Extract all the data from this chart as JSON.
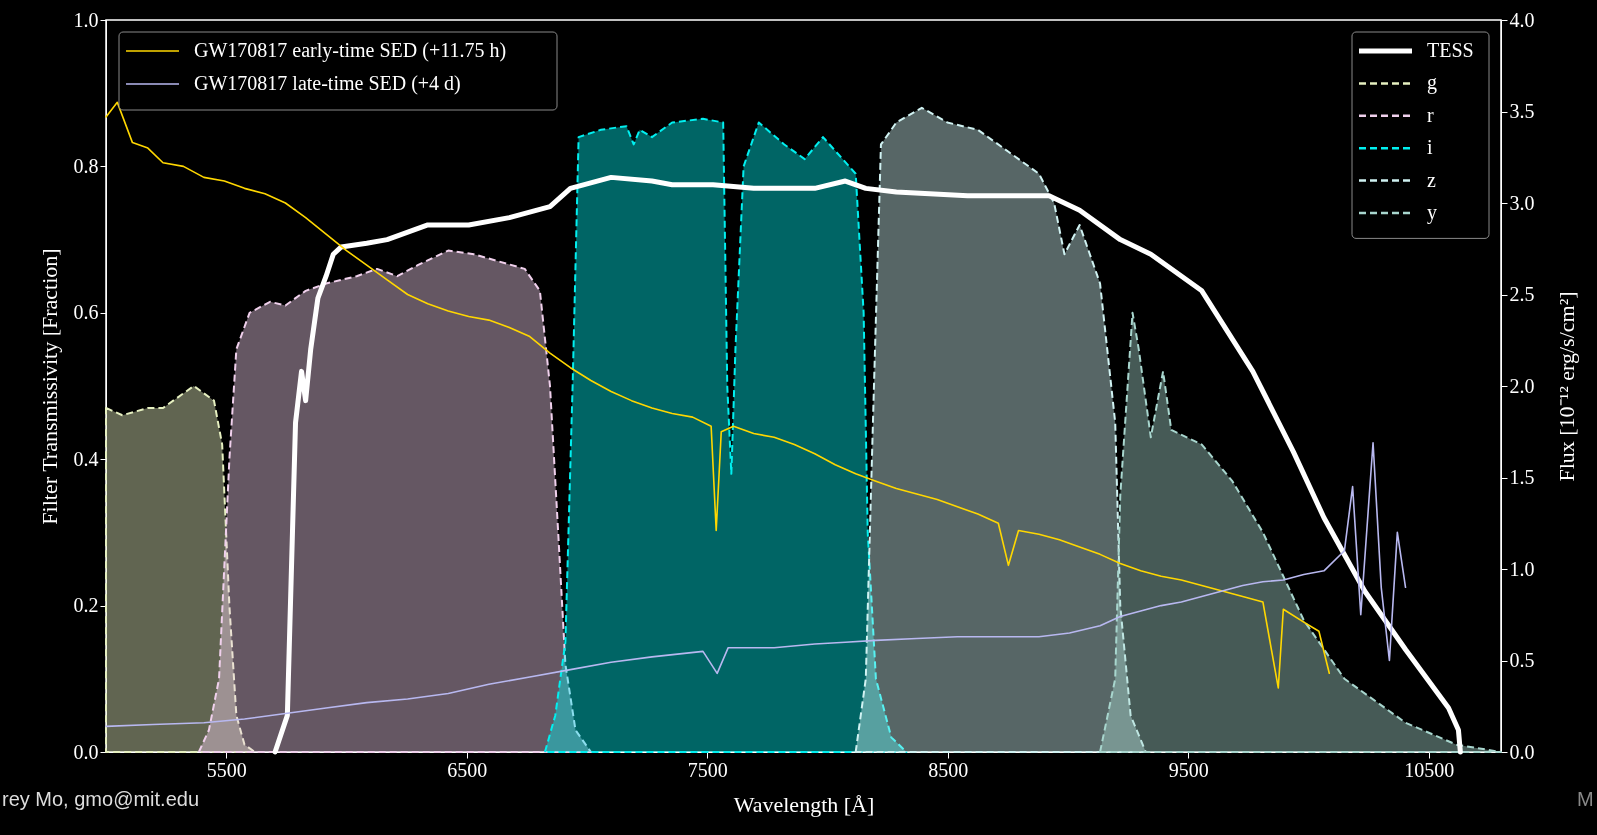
{
  "chart_data": {
    "type": "area",
    "xlabel": "Wavelength [Å]",
    "ylabel": "Filter Transmissivity [Fraction]",
    "y2label": "Flux [10⁻¹² erg/s/cm²]",
    "xlim": [
      5000,
      10800
    ],
    "xticks": [
      5500,
      6500,
      7500,
      8500,
      9500,
      10500
    ],
    "ylim": [
      0,
      1
    ],
    "yticks": [
      {
        "value": 0,
        "label": "0.0"
      },
      {
        "value": 0.2,
        "label": "0.2"
      },
      {
        "value": 0.4,
        "label": "0.4"
      },
      {
        "value": 0.6,
        "label": "0.6"
      },
      {
        "value": 0.8,
        "label": "0.8"
      },
      {
        "value": 1,
        "label": "1.0"
      }
    ],
    "y2lim": [
      0,
      4
    ],
    "y2ticks": [
      {
        "value": 0,
        "label": "0.0"
      },
      {
        "value": 0.5,
        "label": "0.5"
      },
      {
        "value": 1,
        "label": "1.0"
      },
      {
        "value": 1.5,
        "label": "1.5"
      },
      {
        "value": 2,
        "label": "2.0"
      },
      {
        "value": 2.5,
        "label": "2.5"
      },
      {
        "value": 3,
        "label": "3.0"
      },
      {
        "value": 3.5,
        "label": "3.5"
      },
      {
        "value": 4,
        "label": "4.0"
      }
    ],
    "grid": false,
    "legend": "top",
    "annotations": [
      "rey Mo, gmo@mit.edu",
      "M"
    ],
    "series": [
      {
        "name": "TESS",
        "type": "line",
        "color": "#ffffff",
        "line_style": "solid",
        "x": [
          5703,
          5754,
          5788,
          5813,
          5830,
          5851,
          5881,
          5915,
          5945,
          5978,
          6084,
          6169,
          6338,
          6508,
          6677,
          6846,
          6931,
          7100,
          7270,
          7354,
          7524,
          7693,
          7947,
          8074,
          8159,
          8286,
          8582,
          8921,
          9048,
          9217,
          9344,
          9556,
          9768,
          9937,
          10064,
          10233,
          10403,
          10582,
          10623,
          10631
        ],
        "values": [
          0.0,
          0.05,
          0.45,
          0.52,
          0.48,
          0.55,
          0.62,
          0.65,
          0.68,
          0.69,
          0.695,
          0.7,
          0.72,
          0.72,
          0.73,
          0.745,
          0.77,
          0.785,
          0.78,
          0.775,
          0.775,
          0.77,
          0.77,
          0.78,
          0.77,
          0.765,
          0.76,
          0.76,
          0.74,
          0.7,
          0.68,
          0.63,
          0.52,
          0.41,
          0.32,
          0.22,
          0.14,
          0.06,
          0.03,
          0.0
        ]
      },
      {
        "name": "g",
        "color": "#e6f0c0",
        "line_style": "dashed",
        "x": [
          5000,
          5068,
          5174,
          5237,
          5365,
          5449,
          5483,
          5513,
          5542,
          5576,
          5619
        ],
        "values": [
          0.47,
          0.46,
          0.47,
          0.47,
          0.5,
          0.48,
          0.42,
          0.2,
          0.05,
          0.01,
          0.0
        ]
      },
      {
        "name": "r",
        "color": "#f0d0ec",
        "line_style": "dashed",
        "x": [
          5386,
          5428,
          5470,
          5513,
          5542,
          5597,
          5682,
          5746,
          5788,
          5830,
          5915,
          6042,
          6127,
          6211,
          6296,
          6423,
          6529,
          6635,
          6741,
          6804,
          6846,
          6880,
          6910,
          6952,
          7016
        ],
        "values": [
          0.0,
          0.03,
          0.1,
          0.4,
          0.55,
          0.6,
          0.615,
          0.61,
          0.62,
          0.63,
          0.64,
          0.65,
          0.66,
          0.65,
          0.665,
          0.685,
          0.68,
          0.67,
          0.66,
          0.63,
          0.5,
          0.3,
          0.12,
          0.03,
          0.0
        ]
      },
      {
        "name": "i",
        "color": "#00f0f0",
        "line_style": "dashed",
        "x": [
          6825,
          6868,
          6910,
          6940,
          6965,
          7058,
          7164,
          7194,
          7219,
          7270,
          7354,
          7482,
          7566,
          7583,
          7600,
          7617,
          7651,
          7714,
          7820,
          7905,
          7981,
          8117,
          8150,
          8167,
          8201,
          8265,
          8328
        ],
        "values": [
          0.0,
          0.05,
          0.15,
          0.5,
          0.84,
          0.85,
          0.855,
          0.83,
          0.85,
          0.84,
          0.86,
          0.865,
          0.86,
          0.5,
          0.38,
          0.55,
          0.8,
          0.86,
          0.83,
          0.81,
          0.84,
          0.79,
          0.6,
          0.3,
          0.1,
          0.02,
          0.0
        ]
      },
      {
        "name": "z",
        "color": "#d0f2f2",
        "line_style": "dashed",
        "x": [
          8117,
          8159,
          8193,
          8222,
          8265,
          8286,
          8392,
          8498,
          8625,
          8752,
          8879,
          8942,
          8985,
          9048,
          9133,
          9196,
          9217,
          9260,
          9323
        ],
        "values": [
          0.0,
          0.1,
          0.5,
          0.83,
          0.85,
          0.86,
          0.88,
          0.86,
          0.85,
          0.82,
          0.79,
          0.75,
          0.68,
          0.72,
          0.64,
          0.45,
          0.2,
          0.05,
          0.0
        ]
      },
      {
        "name": "y",
        "color": "#a8d6ce",
        "line_style": "dashed",
        "x": [
          9133,
          9196,
          9217,
          9268,
          9294,
          9344,
          9395,
          9429,
          9556,
          9683,
          9810,
          9980,
          10149,
          10403,
          10615,
          10800
        ],
        "values": [
          0.0,
          0.1,
          0.35,
          0.6,
          0.55,
          0.43,
          0.52,
          0.44,
          0.42,
          0.37,
          0.3,
          0.18,
          0.1,
          0.04,
          0.01,
          0.0
        ]
      },
      {
        "name": "GW170817 early-time SED (+11.75 h)",
        "type": "line",
        "axis": "y2",
        "color": "#ffd700",
        "line_style": "solid",
        "x": [
          5000,
          5047,
          5110,
          5174,
          5237,
          5322,
          5407,
          5492,
          5576,
          5661,
          5746,
          5830,
          5915,
          6000,
          6084,
          6169,
          6254,
          6338,
          6423,
          6508,
          6592,
          6677,
          6762,
          6846,
          6931,
          7016,
          7100,
          7185,
          7270,
          7354,
          7439,
          7516,
          7537,
          7558,
          7609,
          7693,
          7778,
          7862,
          7947,
          8032,
          8117,
          8201,
          8286,
          8371,
          8456,
          8540,
          8625,
          8710,
          8752,
          8794,
          8879,
          8964,
          9048,
          9133,
          9217,
          9302,
          9387,
          9471,
          9556,
          9641,
          9726,
          9810,
          9874,
          9895,
          9980,
          10043,
          10086
        ],
        "values": [
          3.47,
          3.55,
          3.33,
          3.3,
          3.22,
          3.2,
          3.14,
          3.12,
          3.08,
          3.05,
          3.0,
          2.92,
          2.83,
          2.74,
          2.66,
          2.58,
          2.5,
          2.45,
          2.41,
          2.38,
          2.36,
          2.32,
          2.27,
          2.18,
          2.1,
          2.03,
          1.97,
          1.92,
          1.88,
          1.85,
          1.83,
          1.78,
          1.21,
          1.75,
          1.78,
          1.74,
          1.72,
          1.68,
          1.63,
          1.57,
          1.52,
          1.48,
          1.44,
          1.41,
          1.38,
          1.34,
          1.3,
          1.25,
          1.02,
          1.21,
          1.19,
          1.16,
          1.12,
          1.08,
          1.03,
          0.99,
          0.96,
          0.94,
          0.91,
          0.88,
          0.85,
          0.82,
          0.35,
          0.78,
          0.71,
          0.66,
          0.43
        ]
      },
      {
        "name": "GW170817 late-time SED (+4 d)",
        "type": "line",
        "axis": "y2",
        "color": "#b8b8f0",
        "line_style": "solid",
        "x": [
          5000,
          5195,
          5407,
          5576,
          5746,
          5915,
          6084,
          6254,
          6423,
          6592,
          6762,
          6931,
          7100,
          7270,
          7482,
          7541,
          7587,
          7778,
          7947,
          8074,
          8201,
          8371,
          8540,
          8710,
          8879,
          9006,
          9133,
          9217,
          9302,
          9387,
          9471,
          9556,
          9641,
          9726,
          9810,
          9895,
          9980,
          10064,
          10149,
          10183,
          10217,
          10268,
          10302,
          10336,
          10369,
          10403
        ],
        "values": [
          0.14,
          0.15,
          0.16,
          0.18,
          0.21,
          0.24,
          0.27,
          0.29,
          0.32,
          0.37,
          0.41,
          0.45,
          0.49,
          0.52,
          0.55,
          0.43,
          0.57,
          0.57,
          0.59,
          0.6,
          0.61,
          0.62,
          0.63,
          0.63,
          0.63,
          0.65,
          0.69,
          0.74,
          0.77,
          0.8,
          0.82,
          0.85,
          0.88,
          0.91,
          0.93,
          0.94,
          0.97,
          0.99,
          1.1,
          1.45,
          0.75,
          1.69,
          0.9,
          0.5,
          1.2,
          0.9
        ]
      }
    ]
  }
}
